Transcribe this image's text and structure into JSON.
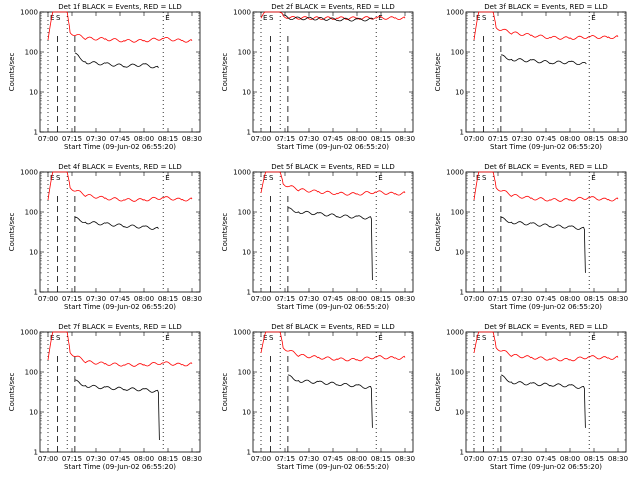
{
  "common": {
    "ylabel": "Counts/sec",
    "xlabel": "Start Time (09-Jun-02 06:55:20)",
    "xticks": [
      "07:00",
      "07:15",
      "07:30",
      "07:45",
      "08:00",
      "08:15",
      "08:30"
    ],
    "yticks": [
      "1",
      "10",
      "100",
      "1000"
    ],
    "marker_labels": [
      "E",
      "S",
      "E"
    ],
    "colors": {
      "events": "#000000",
      "lld": "#ff0000"
    }
  },
  "chart_data": [
    {
      "type": "line",
      "title": "Det 1f BLACK = Events, RED = LLD",
      "x_range": [
        "07:00",
        "08:30"
      ],
      "ylim": [
        1,
        1000
      ],
      "yscale": "log",
      "series": [
        {
          "color": "#ff0000",
          "values": [
            [
              7.0,
              200
            ],
            [
              7.05,
              1000
            ],
            [
              7.2,
              1000
            ],
            [
              7.23,
              300
            ],
            [
              7.4,
              220
            ],
            [
              7.6,
              210
            ],
            [
              7.8,
              190
            ],
            [
              8.0,
              190
            ],
            [
              8.2,
              220
            ],
            [
              8.4,
              190
            ],
            [
              8.5,
              190
            ]
          ]
        },
        {
          "color": "#000000",
          "values": [
            [
              7.28,
              90
            ],
            [
              7.4,
              55
            ],
            [
              7.6,
              50
            ],
            [
              7.8,
              45
            ],
            [
              8.0,
              48
            ],
            [
              8.15,
              40
            ]
          ]
        }
      ]
    },
    {
      "type": "line",
      "title": "Det 2f BLACK = Events, RED = LLD",
      "x_range": [
        "07:00",
        "08:30"
      ],
      "ylim": [
        1,
        1000
      ],
      "yscale": "log",
      "series": [
        {
          "color": "#ff0000",
          "values": [
            [
              7.0,
              700
            ],
            [
              7.05,
              1000
            ],
            [
              7.2,
              1000
            ],
            [
              7.23,
              800
            ],
            [
              7.3,
              720
            ],
            [
              7.6,
              700
            ],
            [
              7.8,
              700
            ],
            [
              8.0,
              700
            ],
            [
              8.2,
              720
            ],
            [
              8.4,
              700
            ],
            [
              8.5,
              700
            ]
          ]
        },
        {
          "color": "#000000",
          "values": [
            [
              7.23,
              800
            ],
            [
              7.3,
              700
            ],
            [
              7.6,
              680
            ],
            [
              7.8,
              650
            ],
            [
              8.0,
              640
            ],
            [
              8.17,
              650
            ]
          ]
        }
      ]
    },
    {
      "type": "line",
      "title": "Det 3f BLACK = Events, RED = LLD",
      "x_range": [
        "07:00",
        "08:30"
      ],
      "ylim": [
        1,
        1000
      ],
      "yscale": "log",
      "series": [
        {
          "color": "#ff0000",
          "values": [
            [
              7.0,
              200
            ],
            [
              7.05,
              1000
            ],
            [
              7.2,
              1000
            ],
            [
              7.23,
              400
            ],
            [
              7.4,
              300
            ],
            [
              7.6,
              260
            ],
            [
              7.8,
              230
            ],
            [
              8.0,
              220
            ],
            [
              8.2,
              240
            ],
            [
              8.4,
              230
            ],
            [
              8.5,
              240
            ]
          ]
        },
        {
          "color": "#000000",
          "values": [
            [
              7.28,
              80
            ],
            [
              7.4,
              65
            ],
            [
              7.6,
              60
            ],
            [
              7.8,
              55
            ],
            [
              8.0,
              55
            ],
            [
              8.17,
              50
            ]
          ]
        }
      ]
    },
    {
      "type": "line",
      "title": "Det 4f BLACK = Events, RED = LLD",
      "x_range": [
        "07:00",
        "08:30"
      ],
      "ylim": [
        1,
        1000
      ],
      "yscale": "log",
      "series": [
        {
          "color": "#ff0000",
          "values": [
            [
              7.0,
              200
            ],
            [
              7.05,
              1000
            ],
            [
              7.2,
              1000
            ],
            [
              7.23,
              400
            ],
            [
              7.4,
              260
            ],
            [
              7.6,
              220
            ],
            [
              7.8,
              200
            ],
            [
              8.0,
              200
            ],
            [
              8.2,
              230
            ],
            [
              8.4,
              200
            ],
            [
              8.5,
              210
            ]
          ]
        },
        {
          "color": "#000000",
          "values": [
            [
              7.28,
              70
            ],
            [
              7.4,
              55
            ],
            [
              7.6,
              50
            ],
            [
              7.8,
              45
            ],
            [
              8.0,
              42
            ],
            [
              8.15,
              38
            ]
          ]
        }
      ]
    },
    {
      "type": "line",
      "title": "Det 5f BLACK = Events, RED = LLD",
      "x_range": [
        "07:00",
        "08:30"
      ],
      "ylim": [
        1,
        1000
      ],
      "yscale": "log",
      "series": [
        {
          "color": "#ff0000",
          "values": [
            [
              7.0,
              300
            ],
            [
              7.05,
              1000
            ],
            [
              7.2,
              1000
            ],
            [
              7.23,
              500
            ],
            [
              7.4,
              360
            ],
            [
              7.6,
              320
            ],
            [
              7.8,
              290
            ],
            [
              8.0,
              280
            ],
            [
              8.2,
              320
            ],
            [
              8.4,
              280
            ],
            [
              8.5,
              300
            ]
          ]
        },
        {
          "color": "#000000",
          "values": [
            [
              7.28,
              120
            ],
            [
              7.4,
              100
            ],
            [
              7.6,
              90
            ],
            [
              7.8,
              80
            ],
            [
              8.0,
              75
            ],
            [
              8.15,
              70
            ],
            [
              8.16,
              2
            ]
          ]
        }
      ]
    },
    {
      "type": "line",
      "title": "Det 6f BLACK = Events, RED = LLD",
      "x_range": [
        "07:00",
        "08:30"
      ],
      "ylim": [
        1,
        1000
      ],
      "yscale": "log",
      "series": [
        {
          "color": "#ff0000",
          "values": [
            [
              7.0,
              200
            ],
            [
              7.05,
              1000
            ],
            [
              7.2,
              1000
            ],
            [
              7.23,
              400
            ],
            [
              7.4,
              260
            ],
            [
              7.6,
              220
            ],
            [
              7.8,
              200
            ],
            [
              8.0,
              200
            ],
            [
              8.2,
              230
            ],
            [
              8.4,
              200
            ],
            [
              8.5,
              210
            ]
          ]
        },
        {
          "color": "#000000",
          "values": [
            [
              7.28,
              70
            ],
            [
              7.4,
              55
            ],
            [
              7.6,
              50
            ],
            [
              7.8,
              45
            ],
            [
              8.0,
              42
            ],
            [
              8.15,
              38
            ],
            [
              8.16,
              3
            ]
          ]
        }
      ]
    },
    {
      "type": "line",
      "title": "Det 7f BLACK = Events, RED = LLD",
      "x_range": [
        "07:00",
        "08:30"
      ],
      "ylim": [
        1,
        1000
      ],
      "yscale": "log",
      "series": [
        {
          "color": "#ff0000",
          "values": [
            [
              7.0,
              200
            ],
            [
              7.05,
              1000
            ],
            [
              7.2,
              1000
            ],
            [
              7.23,
              300
            ],
            [
              7.4,
              180
            ],
            [
              7.6,
              160
            ],
            [
              7.8,
              150
            ],
            [
              8.0,
              150
            ],
            [
              8.2,
              170
            ],
            [
              8.4,
              150
            ],
            [
              8.5,
              160
            ]
          ]
        },
        {
          "color": "#000000",
          "values": [
            [
              7.28,
              60
            ],
            [
              7.4,
              45
            ],
            [
              7.6,
              40
            ],
            [
              7.8,
              38
            ],
            [
              8.0,
              36
            ],
            [
              8.15,
              32
            ],
            [
              8.16,
              2
            ]
          ]
        }
      ]
    },
    {
      "type": "line",
      "title": "Det 8f BLACK = Events, RED = LLD",
      "x_range": [
        "07:00",
        "08:30"
      ],
      "ylim": [
        1,
        1000
      ],
      "yscale": "log",
      "series": [
        {
          "color": "#ff0000",
          "values": [
            [
              7.0,
              300
            ],
            [
              7.05,
              1000
            ],
            [
              7.2,
              1000
            ],
            [
              7.23,
              400
            ],
            [
              7.4,
              260
            ],
            [
              7.6,
              230
            ],
            [
              7.8,
              210
            ],
            [
              8.0,
              200
            ],
            [
              8.2,
              240
            ],
            [
              8.4,
              220
            ],
            [
              8.5,
              230
            ]
          ]
        },
        {
          "color": "#000000",
          "values": [
            [
              7.28,
              80
            ],
            [
              7.4,
              60
            ],
            [
              7.6,
              55
            ],
            [
              7.8,
              50
            ],
            [
              8.0,
              45
            ],
            [
              8.15,
              40
            ],
            [
              8.16,
              4
            ]
          ]
        }
      ]
    },
    {
      "type": "line",
      "title": "Det 9f BLACK = Events, RED = LLD",
      "x_range": [
        "07:00",
        "08:30"
      ],
      "ylim": [
        1,
        1000
      ],
      "yscale": "log",
      "series": [
        {
          "color": "#ff0000",
          "values": [
            [
              7.0,
              300
            ],
            [
              7.05,
              1000
            ],
            [
              7.2,
              1000
            ],
            [
              7.23,
              400
            ],
            [
              7.4,
              260
            ],
            [
              7.6,
              230
            ],
            [
              7.8,
              210
            ],
            [
              8.0,
              200
            ],
            [
              8.2,
              240
            ],
            [
              8.4,
              220
            ],
            [
              8.5,
              230
            ]
          ]
        },
        {
          "color": "#000000",
          "values": [
            [
              7.28,
              80
            ],
            [
              7.4,
              55
            ],
            [
              7.6,
              50
            ],
            [
              7.8,
              48
            ],
            [
              8.0,
              45
            ],
            [
              8.15,
              40
            ],
            [
              8.16,
              4
            ]
          ]
        }
      ]
    }
  ]
}
